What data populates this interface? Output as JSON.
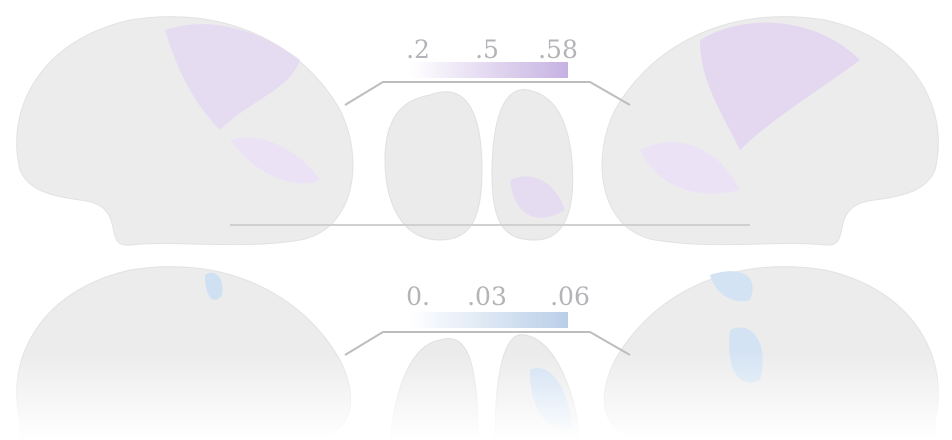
{
  "colorbars": [
    {
      "ticks": [
        ".2",
        ".5",
        ".58"
      ]
    },
    {
      "ticks": [
        "0.",
        ".03",
        ".06"
      ]
    }
  ]
}
